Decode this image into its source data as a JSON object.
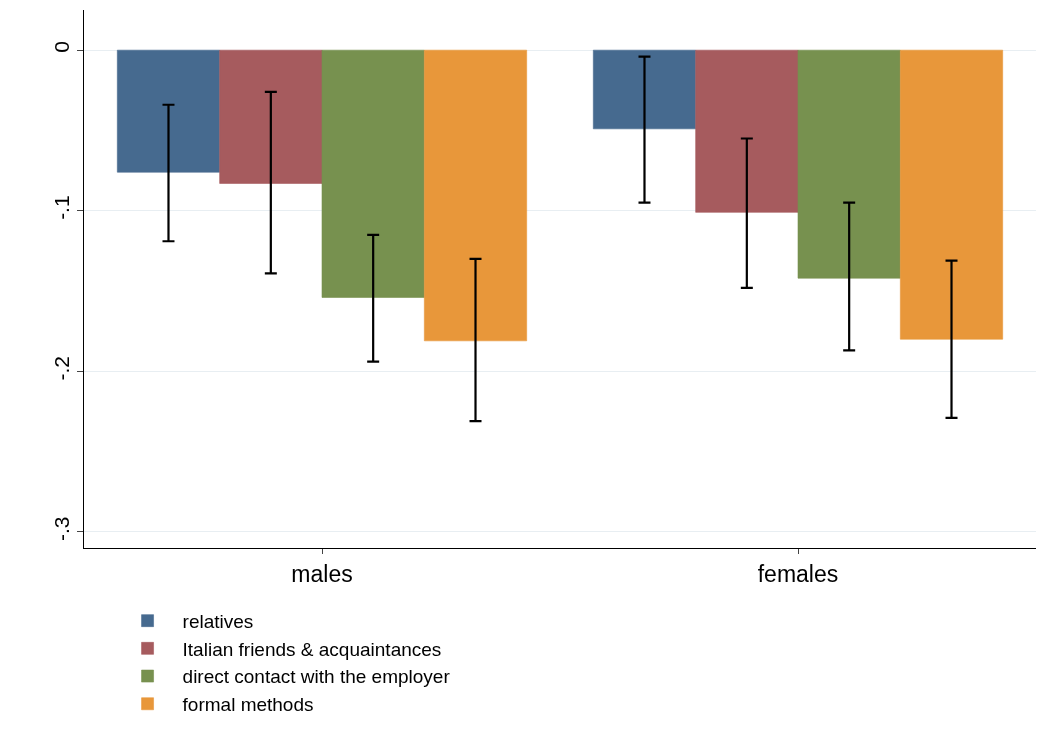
{
  "chart_data": {
    "type": "bar",
    "categories": [
      "males",
      "females"
    ],
    "series": [
      {
        "name": "relatives",
        "color": "#466a8f",
        "values": [
          -0.076,
          -0.049
        ],
        "errors": [
          [
            -0.119,
            -0.034
          ],
          [
            -0.095,
            -0.004
          ]
        ]
      },
      {
        "name": "Italian friends & acquaintances",
        "color": "#a65b5e",
        "values": [
          -0.083,
          -0.101
        ],
        "errors": [
          [
            -0.139,
            -0.026
          ],
          [
            -0.148,
            -0.055
          ]
        ]
      },
      {
        "name": "direct contact with the employer",
        "color": "#77914f",
        "values": [
          -0.154,
          -0.142
        ],
        "errors": [
          [
            -0.194,
            -0.115
          ],
          [
            -0.187,
            -0.095
          ]
        ]
      },
      {
        "name": "formal methods",
        "color": "#e8973a",
        "values": [
          -0.181,
          -0.18
        ],
        "errors": [
          [
            -0.231,
            -0.13
          ],
          [
            -0.229,
            -0.131
          ]
        ]
      }
    ],
    "ylim": [
      -0.31,
      0.025
    ],
    "yticks": [
      {
        "value": 0,
        "label": "0"
      },
      {
        "value": -0.1,
        "label": "-.1"
      },
      {
        "value": -0.2,
        "label": "-.2"
      },
      {
        "value": -0.3,
        "label": "-.3"
      }
    ],
    "grid": "y",
    "legend": "bottom"
  }
}
